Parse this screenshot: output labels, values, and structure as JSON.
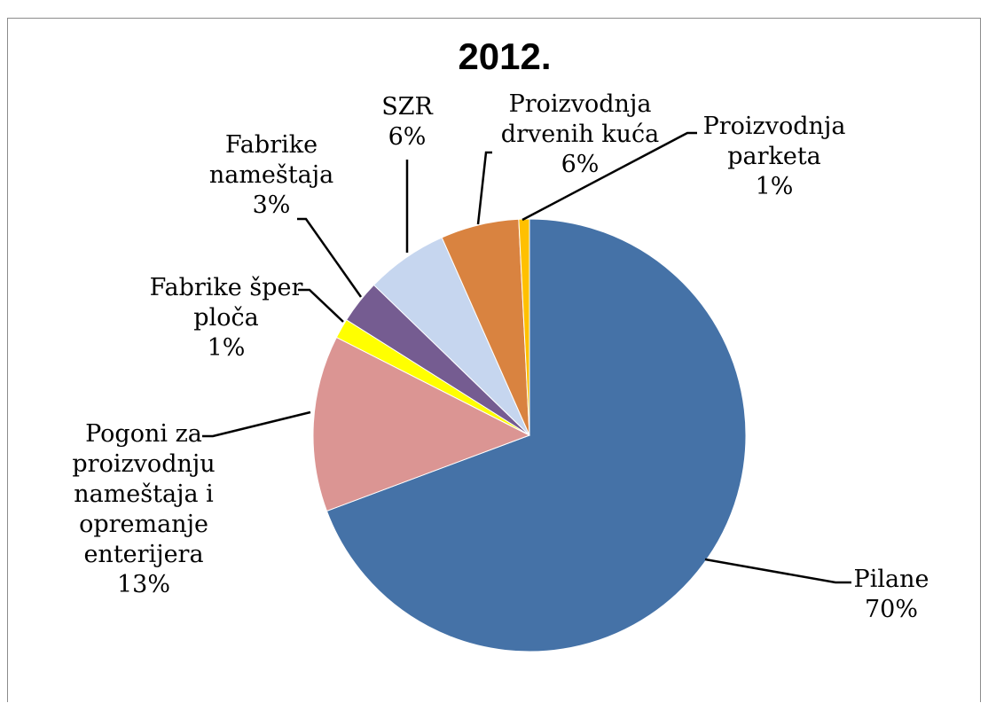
{
  "chart_data": {
    "type": "pie",
    "title": "2012.",
    "slices": [
      {
        "label": [
          "Pilane"
        ],
        "percent": "70%",
        "value": 70.0,
        "color": "#4572a7"
      },
      {
        "label": [
          "Pogoni za",
          "proizvodnju",
          "nameštaja i",
          "opremanje",
          "enterijera"
        ],
        "percent": "13%",
        "value": 13.3,
        "color": "#db9593"
      },
      {
        "label": [
          "Fabrike šper",
          "ploča"
        ],
        "percent": "1%",
        "value": 1.5,
        "color": "#ffff00"
      },
      {
        "label": [
          "Fabrike",
          "nameštaja"
        ],
        "percent": "3%",
        "value": 3.3,
        "color": "#755c91"
      },
      {
        "label": [
          "SZR"
        ],
        "percent": "6%",
        "value": 6.2,
        "color": "#c6d6ef"
      },
      {
        "label": [
          "Proizvodnja",
          "drvenih kuća"
        ],
        "percent": "6%",
        "value": 5.9,
        "color": "#d98340"
      },
      {
        "label": [
          "Proizvodnja",
          "parketa"
        ],
        "percent": "1%",
        "value": 0.8,
        "color": "#ffc000"
      }
    ]
  }
}
